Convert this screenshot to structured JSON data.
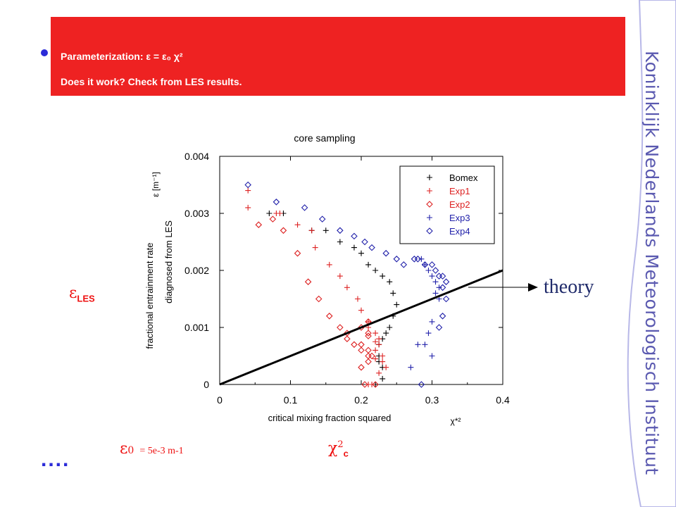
{
  "banner": {
    "line1": "Parameterization: ε = ε₀ χ²",
    "line2": "Does it work? Check from LES results."
  },
  "brand": {
    "text": "Koninklijk Nederlands Meteorologisch Instituut"
  },
  "colors": {
    "banner": "#ee2222",
    "brand": "#5a59b0",
    "accent_red": "#ee1111",
    "bullet": "#2b2bd8",
    "series_black": "#000000",
    "series_red": "#dd2222",
    "series_blue": "#2222aa"
  },
  "labels": {
    "eps_les_symbol": "ε",
    "eps_les_sub": "LES",
    "eps0_symbol": "ε",
    "eps0_sub": "0",
    "eps0_value": "= 5e-3 m-1",
    "chi_symbol": "χ",
    "chi_sup": "2",
    "chi_sub": "c",
    "dots": "....",
    "theory": "theory"
  },
  "chart_data": {
    "type": "scatter",
    "title": "core sampling",
    "xlabel": "critical mixing fraction squared",
    "xlabel_symbol": "χ*²",
    "ylabel_line1": "fractional entrainment rate",
    "ylabel_line2": "diagnosed from LES",
    "ylabel_symbol": "ε [m⁻¹]",
    "xlim": [
      0,
      0.4
    ],
    "ylim": [
      0,
      0.004
    ],
    "xticks": [
      "0",
      "0.1",
      "0.2",
      "0.3",
      "0.4"
    ],
    "yticks": [
      "0",
      "0.001",
      "0.002",
      "0.003",
      "0.004"
    ],
    "legend_position": "top-right",
    "series": [
      {
        "name": "Bomex",
        "marker": "plus",
        "color": "#000000",
        "x": [
          0.07,
          0.09,
          0.13,
          0.15,
          0.17,
          0.19,
          0.2,
          0.21,
          0.22,
          0.23,
          0.24,
          0.245,
          0.25,
          0.245,
          0.24,
          0.235,
          0.23,
          0.225,
          0.225,
          0.225,
          0.23,
          0.23,
          0.22
        ],
        "y": [
          0.003,
          0.003,
          0.0027,
          0.0027,
          0.0025,
          0.0024,
          0.0023,
          0.0021,
          0.002,
          0.0019,
          0.0018,
          0.0016,
          0.0014,
          0.0012,
          0.001,
          0.0009,
          0.0008,
          0.0007,
          0.0005,
          0.0004,
          0.0003,
          0.0001,
          0.0
        ]
      },
      {
        "name": "Exp1",
        "marker": "plus",
        "color": "#dd2222",
        "x": [
          0.04,
          0.08,
          0.11,
          0.13,
          0.135,
          0.155,
          0.17,
          0.18,
          0.195,
          0.2,
          0.21,
          0.21,
          0.22,
          0.225,
          0.225,
          0.22,
          0.23,
          0.23,
          0.235,
          0.21
        ],
        "y": [
          0.0031,
          0.003,
          0.0028,
          0.0027,
          0.0024,
          0.0021,
          0.0019,
          0.0017,
          0.0015,
          0.0013,
          0.0011,
          0.001,
          0.0009,
          0.0008,
          0.0007,
          0.0006,
          0.0005,
          0.0004,
          0.0003,
          0.0
        ],
        "extra": [
          {
            "x": 0.04,
            "y": 0.0034
          },
          {
            "x": 0.085,
            "y": 0.003
          },
          {
            "x": 0.22,
            "y": 0.00075
          },
          {
            "x": 0.22,
            "y": 0.00045
          },
          {
            "x": 0.225,
            "y": 0.0002
          },
          {
            "x": 0.215,
            "y": 0.0
          }
        ]
      },
      {
        "name": "Exp2",
        "marker": "diamond",
        "color": "#dd2222",
        "x": [
          0.055,
          0.075,
          0.09,
          0.11,
          0.125,
          0.14,
          0.155,
          0.17,
          0.18,
          0.18,
          0.19,
          0.2,
          0.21,
          0.21,
          0.2,
          0.21,
          0.21,
          0.21,
          0.2,
          0.2,
          0.205
        ],
        "y": [
          0.0028,
          0.0029,
          0.0027,
          0.0023,
          0.0018,
          0.0015,
          0.0012,
          0.001,
          0.0009,
          0.0008,
          0.0007,
          0.0006,
          0.00085,
          0.0011,
          0.001,
          0.0006,
          0.0005,
          0.0004,
          0.0003,
          0.0007,
          0.0
        ],
        "extra": [
          {
            "x": 0.21,
            "y": 0.0009
          },
          {
            "x": 0.215,
            "y": 0.0005
          },
          {
            "x": 0.22,
            "y": 0.0
          }
        ]
      },
      {
        "name": "Exp3",
        "marker": "plus",
        "color": "#2222aa",
        "x": [
          0.285,
          0.29,
          0.295,
          0.3,
          0.305,
          0.31,
          0.31,
          0.3,
          0.295,
          0.28,
          0.27
        ],
        "y": [
          0.0022,
          0.0021,
          0.002,
          0.0019,
          0.0018,
          0.0017,
          0.0015,
          0.0011,
          0.0009,
          0.0007,
          0.0003
        ],
        "extra": [
          {
            "x": 0.29,
            "y": 0.0007
          },
          {
            "x": 0.305,
            "y": 0.0016
          },
          {
            "x": 0.3,
            "y": 0.0005
          }
        ]
      },
      {
        "name": "Exp4",
        "marker": "diamond",
        "color": "#2222aa",
        "x": [
          0.04,
          0.08,
          0.12,
          0.145,
          0.17,
          0.19,
          0.205,
          0.215,
          0.235,
          0.25,
          0.26,
          0.275,
          0.28,
          0.29,
          0.3,
          0.305,
          0.31,
          0.315,
          0.32,
          0.315,
          0.32,
          0.315,
          0.31,
          0.285
        ],
        "y": [
          0.0035,
          0.0032,
          0.0031,
          0.0029,
          0.0027,
          0.0026,
          0.0025,
          0.0024,
          0.0023,
          0.0022,
          0.0021,
          0.0022,
          0.0022,
          0.0021,
          0.0021,
          0.002,
          0.0019,
          0.0019,
          0.0018,
          0.0017,
          0.0015,
          0.0012,
          0.001,
          0.0
        ]
      }
    ],
    "theory_line": {
      "x": [
        0,
        0.4
      ],
      "y": [
        0,
        0.002
      ]
    }
  }
}
